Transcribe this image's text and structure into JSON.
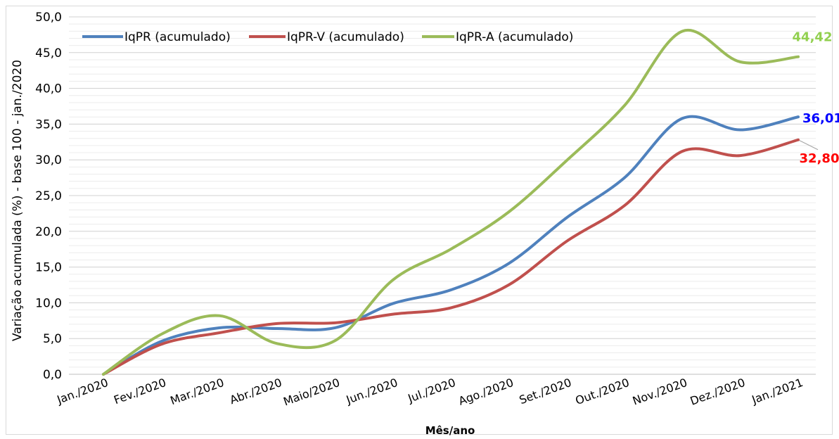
{
  "chart_data": {
    "type": "line",
    "title": "",
    "xlabel": "Mês/ano",
    "ylabel": "Variação acumulada (%) - base 100 - jan./2020",
    "ylim": [
      0,
      50
    ],
    "ytick_labels": [
      "0,0",
      "5,0",
      "10,0",
      "15,0",
      "20,0",
      "25,0",
      "30,0",
      "35,0",
      "40,0",
      "45,0",
      "50,0"
    ],
    "categories": [
      "Jan./2020",
      "Fev./2020",
      "Mar./2020",
      "Abr./2020",
      "Maio/2020",
      "Jun./2020",
      "Jul./2020",
      "Ago./2020",
      "Set./2020",
      "Out./2020",
      "Nov./2020",
      "Dez./2020",
      "Jan./2021"
    ],
    "grid": true,
    "legend_position": "top-left",
    "series": [
      {
        "name": "IqPR (acumulado)",
        "color": "#4f81bd",
        "values": [
          0.0,
          4.6,
          6.5,
          6.4,
          6.5,
          9.9,
          11.8,
          15.5,
          21.9,
          27.5,
          35.8,
          34.2,
          36.01
        ]
      },
      {
        "name": "IqPR-V  (acumulado)",
        "color": "#c0504d",
        "values": [
          0.0,
          4.2,
          5.8,
          7.1,
          7.2,
          8.4,
          9.3,
          12.5,
          18.6,
          23.6,
          31.2,
          30.6,
          32.8
        ]
      },
      {
        "name": "IqPR-A  (acumulado)",
        "color": "#9bbb59",
        "values": [
          0.0,
          5.6,
          8.2,
          4.3,
          4.7,
          13.2,
          17.5,
          22.7,
          29.9,
          37.6,
          48.0,
          43.7,
          44.42
        ]
      }
    ],
    "end_labels": [
      {
        "series": 0,
        "text": "36,01",
        "color": "#0000ff"
      },
      {
        "series": 1,
        "text": "32,80",
        "color": "#ff0000"
      },
      {
        "series": 2,
        "text": "44,42",
        "color": "#92d050"
      }
    ]
  }
}
